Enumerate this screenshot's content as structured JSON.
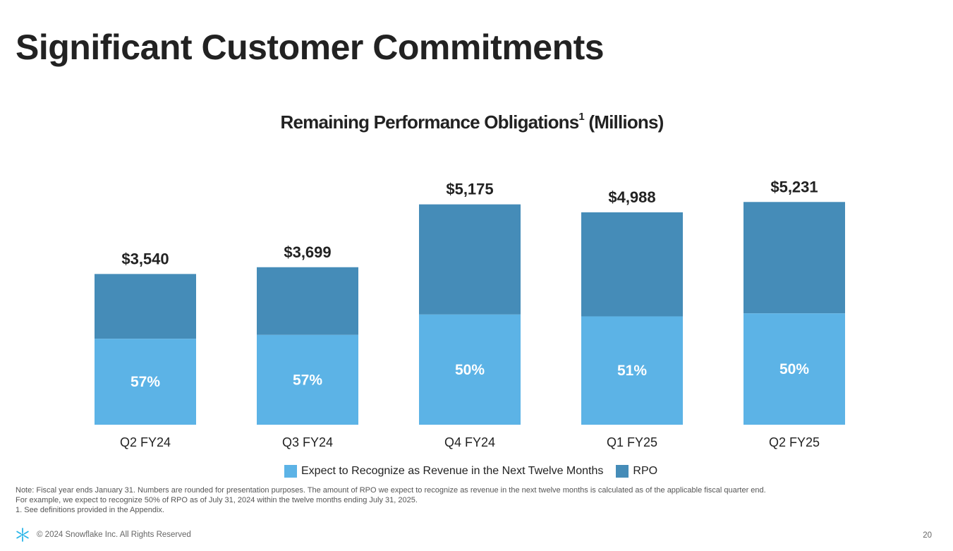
{
  "page": {
    "title": "Significant Customer Commitments",
    "page_number": "20"
  },
  "chart_title": {
    "text": "Remaining Performance Obligations",
    "footnote_mark": "1",
    "units": "(Millions)"
  },
  "chart_data": {
    "type": "bar",
    "title": "Remaining Performance Obligations¹ (Millions)",
    "stacked": true,
    "categories": [
      "Q2 FY24",
      "Q3 FY24",
      "Q4 FY24",
      "Q1 FY25",
      "Q2 FY25"
    ],
    "totals": [
      3540,
      3699,
      5175,
      4988,
      5231
    ],
    "total_labels": [
      "$3,540",
      "$3,699",
      "$5,175",
      "$4,988",
      "$5,231"
    ],
    "next_twelve_months_pct": [
      57,
      57,
      50,
      51,
      50
    ],
    "pct_labels": [
      "57%",
      "57%",
      "50%",
      "51%",
      "50%"
    ],
    "series": [
      {
        "name": "Expect to Recognize as Revenue in the Next Twelve Months",
        "color": "#5cb3e6"
      },
      {
        "name": "RPO",
        "color": "#458cb8"
      }
    ],
    "ylim": [
      0,
      5650
    ],
    "grid": false,
    "legend_position": "bottom"
  },
  "notes": [
    "Note: Fiscal year ends January 31. Numbers are rounded for presentation purposes. The amount of RPO we expect to recognize as revenue in the next twelve months is calculated as of the applicable fiscal quarter end.",
    "For example, we expect to recognize 50% of RPO as of July 31, 2024 within the twelve months ending July 31, 2025.",
    "1.  See definitions provided in the Appendix."
  ],
  "footer": {
    "copyright": "© 2024 Snowflake Inc. All Rights Reserved",
    "logo_icon": "snowflake-logo-icon"
  }
}
